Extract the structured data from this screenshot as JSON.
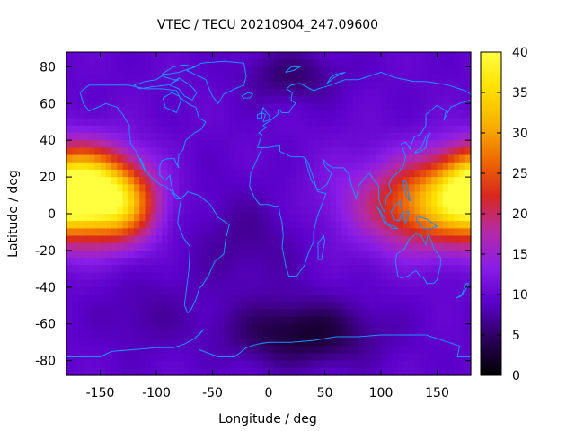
{
  "chart_data": {
    "type": "heatmap",
    "title": "VTEC / TECU 20210904_247.09600",
    "xlabel": "Longitude / deg",
    "ylabel": "Latitude / deg",
    "xlim": [
      -180,
      180
    ],
    "ylim": [
      -88,
      88
    ],
    "x_ticks": [
      -150,
      -100,
      -50,
      0,
      50,
      100,
      150
    ],
    "x_tick_labels": [
      "-150",
      "-100",
      "-50",
      "0",
      "50",
      "100",
      "150"
    ],
    "y_ticks": [
      -80,
      -60,
      -40,
      -20,
      0,
      20,
      40,
      60,
      80
    ],
    "y_tick_labels": [
      "-80",
      "-60",
      "-40",
      "-20",
      "0",
      "20",
      "40",
      "60",
      "80"
    ],
    "colorbar": {
      "range": [
        0,
        40
      ],
      "ticks": [
        0,
        5,
        10,
        15,
        20,
        25,
        30,
        35,
        40
      ],
      "tick_labels": [
        "0",
        "5",
        "10",
        "15",
        "20",
        "25",
        "30",
        "35",
        "40"
      ]
    },
    "palette": [
      "#000000",
      "#2a0058",
      "#5a00c8",
      "#8a1de8",
      "#b52aa6",
      "#d9281e",
      "#ef6a00",
      "#f9b200",
      "#ffe000",
      "#ffff40"
    ],
    "grid": false,
    "overlay": "coastlines",
    "overlay_color": "#1e90ff",
    "field_model": {
      "background_tecu": 9.5,
      "anomalies": [
        {
          "lon": -160,
          "lat": 12,
          "peak": 28,
          "sigma_lon": 32,
          "sigma_lat": 16
        },
        {
          "lon": -128,
          "lat": 2,
          "peak": 11,
          "sigma_lon": 22,
          "sigma_lat": 14
        },
        {
          "lon": 140,
          "lat": 5,
          "peak": 18,
          "sigma_lon": 40,
          "sigma_lat": 17
        },
        {
          "lon": 180,
          "lat": 15,
          "peak": 6,
          "sigma_lon": 20,
          "sigma_lat": 14
        },
        {
          "lon": 30,
          "lat": -65,
          "peak": -7,
          "sigma_lon": 45,
          "sigma_lat": 12
        },
        {
          "lon": 20,
          "lat": 75,
          "peak": -4,
          "sigma_lon": 30,
          "sigma_lat": 10
        },
        {
          "lon": -20,
          "lat": -15,
          "peak": -2.5,
          "sigma_lon": 40,
          "sigma_lat": 20
        },
        {
          "lon": -110,
          "lat": -55,
          "peak": -2,
          "sigma_lon": 30,
          "sigma_lat": 15
        },
        {
          "lon": 60,
          "lat": 10,
          "peak": 1.5,
          "sigma_lon": 30,
          "sigma_lat": 20
        }
      ]
    }
  }
}
